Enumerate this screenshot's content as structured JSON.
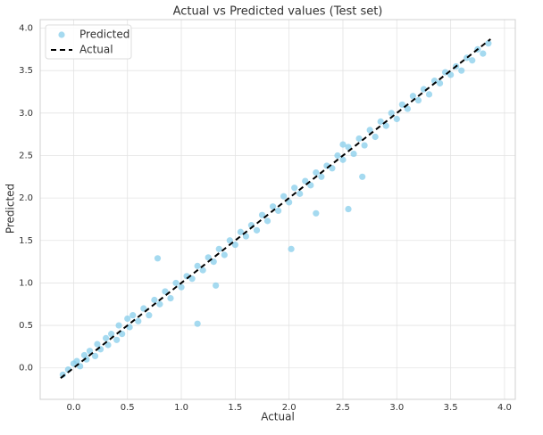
{
  "chart_data": {
    "type": "scatter",
    "title": "Actual vs Predicted values (Test set)",
    "x_label": "Actual",
    "y_label": "Predicted",
    "xlim": [
      -0.31,
      4.1
    ],
    "ylim": [
      -0.37,
      4.1
    ],
    "xticks": [
      {
        "value": 0,
        "label": "0.0"
      },
      {
        "value": 0.5,
        "label": "0.5"
      },
      {
        "value": 1,
        "label": "1.0"
      },
      {
        "value": 1.5,
        "label": "1.5"
      },
      {
        "value": 2,
        "label": "2.0"
      },
      {
        "value": 2.5,
        "label": "2.5"
      },
      {
        "value": 3,
        "label": "3.0"
      },
      {
        "value": 3.5,
        "label": "3.5"
      },
      {
        "value": 4,
        "label": "4.0"
      }
    ],
    "yticks": [
      {
        "value": 0,
        "label": "0.0"
      },
      {
        "value": 0.5,
        "label": "0.5"
      },
      {
        "value": 1,
        "label": "1.0"
      },
      {
        "value": 1.5,
        "label": "1.5"
      },
      {
        "value": 2,
        "label": "2.0"
      },
      {
        "value": 2.5,
        "label": "2.5"
      },
      {
        "value": 3,
        "label": "3.0"
      },
      {
        "value": 3.5,
        "label": "3.5"
      },
      {
        "value": 4,
        "label": "4.0"
      }
    ],
    "grid": true,
    "legend": "upper left",
    "series": [
      {
        "name": "Predicted",
        "type": "scatter",
        "color": "#87ceeb",
        "x": [
          -0.1,
          -0.05,
          0.0,
          0.03,
          0.06,
          0.1,
          0.12,
          0.15,
          0.2,
          0.22,
          0.25,
          0.3,
          0.32,
          0.35,
          0.4,
          0.42,
          0.45,
          0.5,
          0.52,
          0.55,
          0.6,
          0.65,
          0.7,
          0.75,
          0.8,
          0.85,
          0.9,
          0.95,
          1.0,
          1.05,
          1.1,
          1.15,
          1.2,
          1.25,
          1.3,
          1.35,
          1.4,
          1.45,
          1.5,
          1.55,
          1.6,
          1.65,
          1.7,
          1.75,
          1.8,
          1.85,
          1.9,
          1.95,
          2.0,
          2.05,
          2.1,
          2.15,
          2.2,
          2.25,
          2.3,
          2.35,
          2.4,
          2.45,
          2.5,
          2.55,
          2.6,
          2.65,
          2.7,
          2.75,
          2.8,
          2.85,
          2.9,
          2.95,
          3.0,
          3.05,
          3.1,
          3.15,
          3.2,
          3.25,
          3.3,
          3.35,
          3.4,
          3.45,
          3.5,
          3.55,
          3.6,
          3.65,
          3.7,
          3.75,
          3.8,
          3.85,
          0.78,
          1.15,
          1.32,
          2.02,
          2.25,
          2.55,
          2.68,
          2.5
        ],
        "values": [
          -0.08,
          -0.02,
          0.05,
          0.08,
          0.02,
          0.15,
          0.1,
          0.2,
          0.14,
          0.28,
          0.22,
          0.35,
          0.27,
          0.4,
          0.33,
          0.5,
          0.4,
          0.58,
          0.48,
          0.62,
          0.55,
          0.7,
          0.62,
          0.8,
          0.75,
          0.9,
          0.82,
          1.0,
          0.95,
          1.08,
          1.05,
          1.2,
          1.15,
          1.3,
          1.25,
          1.4,
          1.33,
          1.5,
          1.45,
          1.6,
          1.55,
          1.68,
          1.62,
          1.8,
          1.73,
          1.9,
          1.85,
          2.02,
          1.95,
          2.12,
          2.05,
          2.2,
          2.15,
          2.3,
          2.25,
          2.38,
          2.35,
          2.5,
          2.45,
          2.6,
          2.52,
          2.7,
          2.62,
          2.8,
          2.72,
          2.9,
          2.85,
          3.0,
          2.93,
          3.1,
          3.05,
          3.2,
          3.15,
          3.28,
          3.22,
          3.38,
          3.35,
          3.48,
          3.45,
          3.55,
          3.5,
          3.65,
          3.62,
          3.75,
          3.7,
          3.82,
          1.29,
          0.52,
          0.97,
          1.4,
          1.82,
          1.87,
          2.25,
          2.63
        ]
      },
      {
        "name": "Actual",
        "type": "line",
        "color": "#000000",
        "linestyle": "dashed",
        "x": [
          -0.12,
          3.87
        ],
        "values": [
          -0.12,
          3.87
        ]
      }
    ]
  }
}
